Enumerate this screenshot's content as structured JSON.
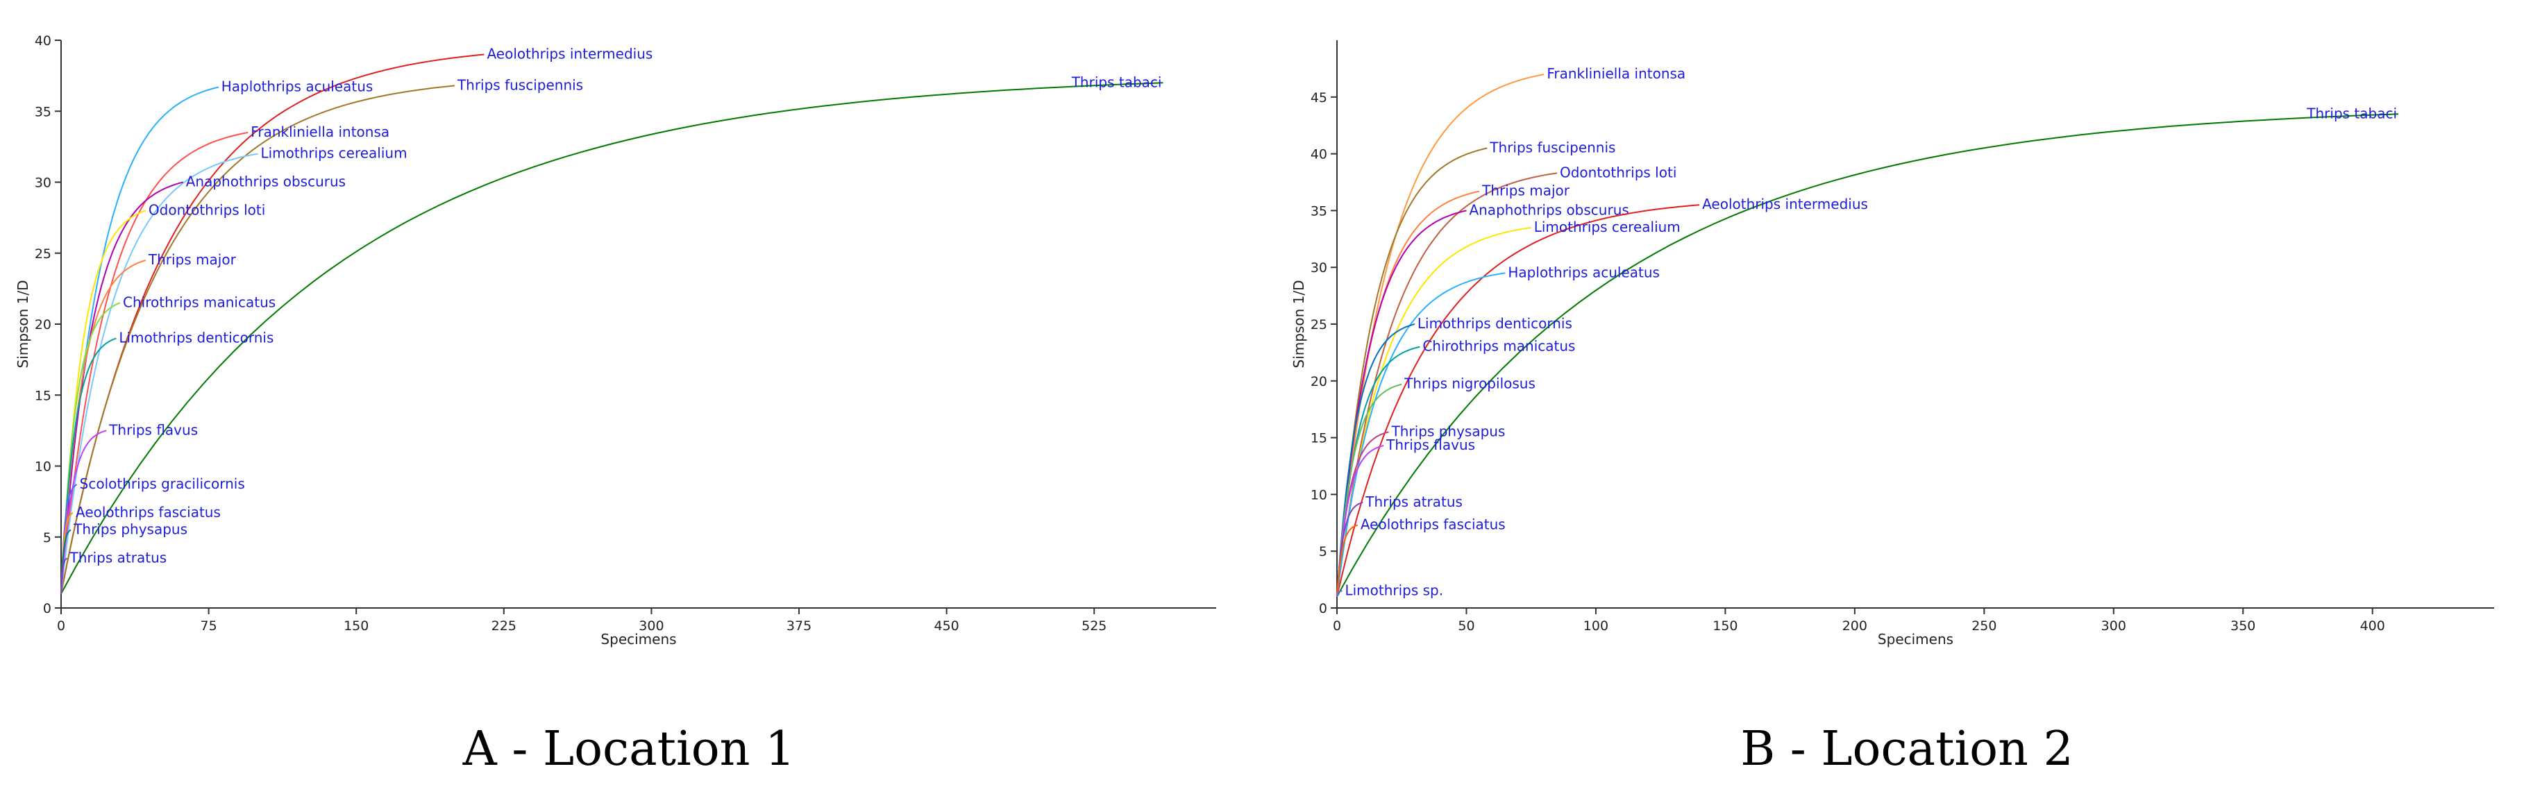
{
  "captions": [
    "A - Location 1",
    "B - Location 2"
  ],
  "chart_data": [
    {
      "type": "line",
      "title": "",
      "xlabel": "Specimens",
      "ylabel": "Simpson 1/D",
      "xlim": [
        0,
        587
      ],
      "ylim": [
        0,
        40
      ],
      "xticks": [
        0,
        75,
        150,
        225,
        300,
        375,
        450,
        525
      ],
      "yticks": [
        0,
        5,
        10,
        15,
        20,
        25,
        30,
        35,
        40
      ],
      "grid": false,
      "legend": "inline labels at curve ends",
      "series": [
        {
          "name": "Thrips tabaci",
          "color": "#007a00",
          "end": [
            560,
            37.0
          ]
        },
        {
          "name": "Aeolothrips intermedius",
          "color": "#e0201f",
          "end": [
            215,
            39.0
          ]
        },
        {
          "name": "Thrips fuscipennis",
          "color": "#a07828",
          "end": [
            200,
            36.8
          ]
        },
        {
          "name": "Haplothrips aculeatus",
          "color": "#2ab0ff",
          "end": [
            80,
            36.7
          ]
        },
        {
          "name": "Frankliniella intonsa",
          "color": "#ff5050",
          "end": [
            95,
            33.5
          ]
        },
        {
          "name": "Limothrips cerealium",
          "color": "#78c8ff",
          "end": [
            100,
            32.0
          ]
        },
        {
          "name": "Anaphothrips obscurus",
          "color": "#b000b0",
          "end": [
            62,
            30.0
          ]
        },
        {
          "name": "Odontothrips loti",
          "color": "#ffe600",
          "end": [
            43,
            28.0
          ]
        },
        {
          "name": "Thrips major",
          "color": "#ff8040",
          "end": [
            43,
            24.5
          ]
        },
        {
          "name": "Chirothrips manicatus",
          "color": "#80e040",
          "end": [
            30,
            21.5
          ]
        },
        {
          "name": "Limothrips denticornis",
          "color": "#00a0a0",
          "end": [
            28,
            19.0
          ]
        },
        {
          "name": "Thrips flavus",
          "color": "#c040ff",
          "end": [
            23,
            12.5
          ]
        },
        {
          "name": "Scolothrips gracilicornis",
          "color": "#6060ff",
          "end": [
            8,
            8.7
          ]
        },
        {
          "name": "Aeolothrips fasciatus",
          "color": "#ff9a00",
          "end": [
            6,
            6.7
          ]
        },
        {
          "name": "Thrips physapus",
          "color": "#008080",
          "end": [
            5,
            5.5
          ]
        },
        {
          "name": "Thrips atratus",
          "color": "#8040c0",
          "end": [
            3,
            3.5
          ]
        }
      ]
    },
    {
      "type": "line",
      "title": "",
      "xlabel": "Specimens",
      "ylabel": "Simpson 1/D",
      "xlim": [
        0,
        447
      ],
      "ylim": [
        0,
        50
      ],
      "xticks": [
        0,
        50,
        100,
        150,
        200,
        250,
        300,
        350,
        400
      ],
      "yticks": [
        0,
        5,
        10,
        15,
        20,
        25,
        30,
        35,
        40,
        45
      ],
      "grid": false,
      "legend": "inline labels at curve ends",
      "series": [
        {
          "name": "Thrips tabaci",
          "color": "#007a00",
          "end": [
            410,
            43.5
          ]
        },
        {
          "name": "Frankliniella intonsa",
          "color": "#ff9a40",
          "end": [
            80,
            47.0
          ]
        },
        {
          "name": "Thrips fuscipennis",
          "color": "#a07828",
          "end": [
            58,
            40.5
          ]
        },
        {
          "name": "Odontothrips loti",
          "color": "#c06040",
          "end": [
            85,
            38.3
          ]
        },
        {
          "name": "Thrips major",
          "color": "#ff8040",
          "end": [
            55,
            36.7
          ]
        },
        {
          "name": "Anaphothrips obscurus",
          "color": "#b000b0",
          "end": [
            50,
            35.0
          ]
        },
        {
          "name": "Aeolothrips intermedius",
          "color": "#e0201f",
          "end": [
            140,
            35.5
          ]
        },
        {
          "name": "Limothrips cerealium",
          "color": "#ffe600",
          "end": [
            75,
            33.5
          ]
        },
        {
          "name": "Haplothrips aculeatus",
          "color": "#2ab0ff",
          "end": [
            65,
            29.5
          ]
        },
        {
          "name": "Limothrips denticornis",
          "color": "#0070c0",
          "end": [
            30,
            25.0
          ]
        },
        {
          "name": "Chirothrips manicatus",
          "color": "#00a0a0",
          "end": [
            32,
            23.0
          ]
        },
        {
          "name": "Thrips nigropilosus",
          "color": "#60c060",
          "end": [
            25,
            19.7
          ]
        },
        {
          "name": "Thrips physapus",
          "color": "#c04080",
          "end": [
            20,
            15.5
          ]
        },
        {
          "name": "Thrips flavus",
          "color": "#c040ff",
          "end": [
            18,
            14.3
          ]
        },
        {
          "name": "Thrips atratus",
          "color": "#8040c0",
          "end": [
            10,
            9.3
          ]
        },
        {
          "name": "Aeolothrips fasciatus",
          "color": "#ff6000",
          "end": [
            8,
            7.3
          ]
        },
        {
          "name": "Limothrips sp.",
          "color": "#6060ff",
          "end": [
            2,
            1.5
          ]
        }
      ]
    }
  ]
}
